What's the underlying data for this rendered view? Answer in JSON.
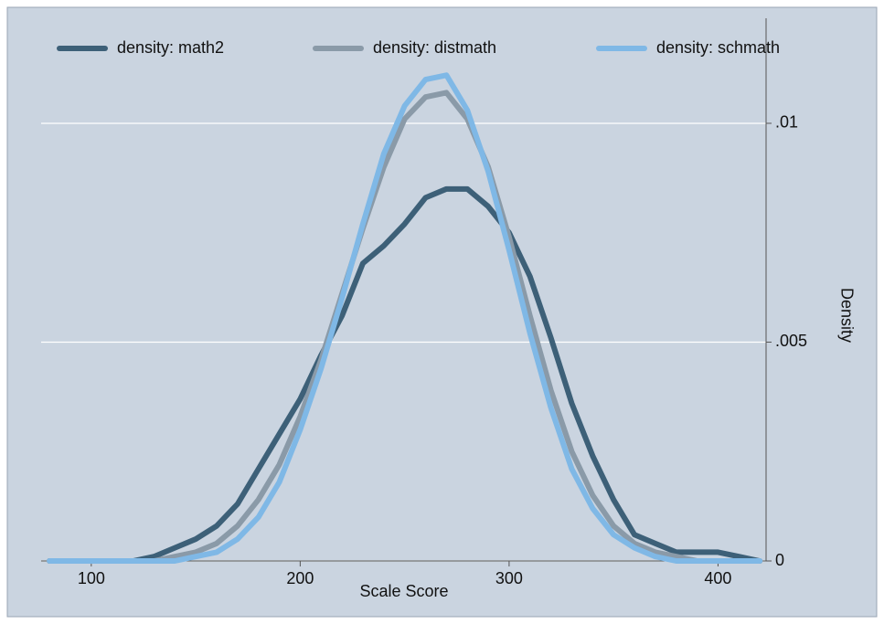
{
  "chart_data": {
    "type": "line",
    "x_label": "Scale Score",
    "y_label": "Density",
    "x": [
      80,
      90,
      100,
      110,
      120,
      130,
      140,
      150,
      160,
      170,
      180,
      190,
      200,
      210,
      220,
      230,
      240,
      250,
      260,
      270,
      280,
      290,
      300,
      310,
      320,
      330,
      340,
      350,
      360,
      370,
      380,
      390,
      400,
      410,
      420
    ],
    "series": [
      {
        "name": "density: math2",
        "color": "#3d6078",
        "values": [
          0,
          0,
          0,
          0,
          0,
          0.0001,
          0.0003,
          0.0005,
          0.0008,
          0.0013,
          0.0021,
          0.0029,
          0.0037,
          0.0047,
          0.0056,
          0.0068,
          0.0072,
          0.0077,
          0.0083,
          0.0085,
          0.0085,
          0.0081,
          0.0075,
          0.0065,
          0.0051,
          0.0036,
          0.0024,
          0.0014,
          0.0006,
          0.0004,
          0.0002,
          0.0002,
          0.0002,
          0.0001,
          0
        ]
      },
      {
        "name": "density: distmath",
        "color": "#8a9aa8",
        "values": [
          0,
          0,
          0,
          0,
          0,
          0,
          0.0001,
          0.0002,
          0.0004,
          0.0008,
          0.0014,
          0.0022,
          0.0033,
          0.0046,
          0.0061,
          0.0076,
          0.009,
          0.0101,
          0.0106,
          0.0107,
          0.0101,
          0.009,
          0.0074,
          0.0056,
          0.0039,
          0.0025,
          0.0015,
          0.0008,
          0.0004,
          0.0002,
          0.0001,
          0,
          0,
          0,
          0
        ]
      },
      {
        "name": "density: schmath",
        "color": "#7fb8e6",
        "values": [
          0,
          0,
          0,
          0,
          0,
          0,
          0,
          0.0001,
          0.0002,
          0.0005,
          0.001,
          0.0018,
          0.003,
          0.0044,
          0.006,
          0.0077,
          0.0093,
          0.0104,
          0.011,
          0.0111,
          0.0103,
          0.0089,
          0.0071,
          0.0052,
          0.0035,
          0.0021,
          0.0012,
          0.0006,
          0.0003,
          0.0001,
          0,
          0,
          0,
          0,
          0
        ]
      }
    ],
    "xlim": [
      76,
      423
    ],
    "ylim": [
      0,
      0.0124
    ],
    "xticks": [
      100,
      200,
      300,
      400
    ],
    "yticks": [
      {
        "value": 0.01,
        "label": ".01"
      },
      {
        "value": 0.005,
        "label": ".005"
      },
      0
    ],
    "grid": true,
    "legend": "top"
  }
}
